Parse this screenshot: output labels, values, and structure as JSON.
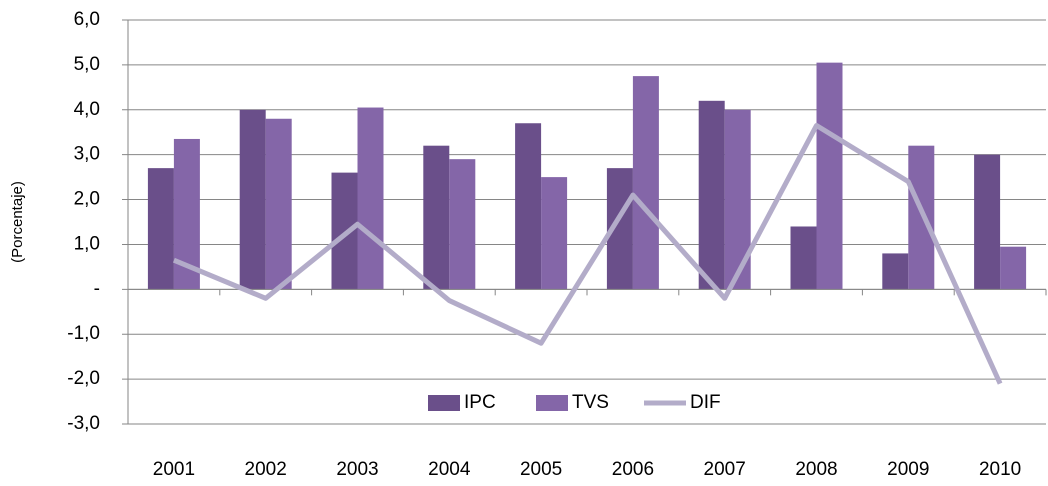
{
  "chart_data": {
    "type": "bar_line",
    "y_label": "(Porcentaje)",
    "categories": [
      "2001",
      "2002",
      "2003",
      "2004",
      "2005",
      "2006",
      "2007",
      "2008",
      "2009",
      "2010"
    ],
    "series": [
      {
        "name": "IPC",
        "type": "bar",
        "color": "#6a4f8a",
        "values": [
          2.7,
          4.0,
          2.6,
          3.2,
          3.7,
          2.7,
          4.2,
          1.4,
          0.8,
          3.0
        ]
      },
      {
        "name": "TVS",
        "type": "bar",
        "color": "#8466a8",
        "values": [
          3.35,
          3.8,
          4.05,
          2.9,
          2.5,
          4.75,
          4.0,
          5.05,
          3.2,
          0.95
        ]
      },
      {
        "name": "DIF",
        "type": "line",
        "color": "#b3acc9",
        "values": [
          0.65,
          -0.2,
          1.45,
          -0.25,
          -1.2,
          2.1,
          -0.2,
          3.65,
          2.4,
          -2.1
        ]
      }
    ],
    "ylim": [
      -3,
      6
    ],
    "yticks": [
      {
        "value": -3,
        "label": "-3,0"
      },
      {
        "value": -2,
        "label": "-2,0"
      },
      {
        "value": -1,
        "label": "-1,0"
      },
      {
        "value": 0,
        "label": "-"
      },
      {
        "value": 1,
        "label": "1,0"
      },
      {
        "value": 2,
        "label": "2,0"
      },
      {
        "value": 3,
        "label": "3,0"
      },
      {
        "value": 4,
        "label": "4,0"
      },
      {
        "value": 5,
        "label": "5,0"
      },
      {
        "value": 6,
        "label": "6,0"
      }
    ],
    "grid": true,
    "legend": "bottom"
  }
}
